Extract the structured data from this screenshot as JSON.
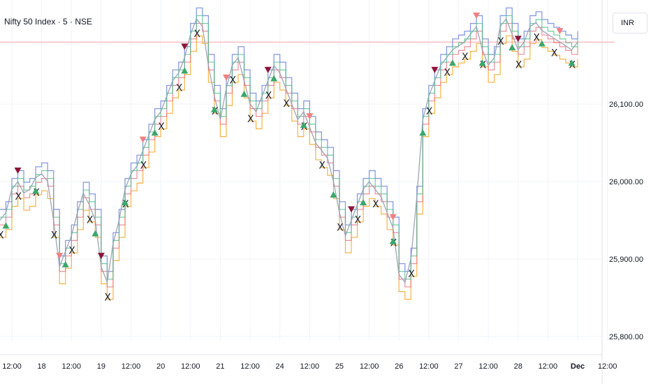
{
  "header": {
    "title": "Nifty 50 Index · 5 · NSE",
    "currency": "INR"
  },
  "colors": {
    "grid": "#f0f3fa",
    "price_line": "#f7a1a8",
    "bullish_marker": "#3aa86b",
    "bearish_marker": "#f08080",
    "dark_marker": "#8b1538",
    "x_marker": "#1e222d",
    "line_blue": "#7b8fe0",
    "line_orange": "#f5a623",
    "line_green": "#4cbf8b",
    "line_pink": "#e87080"
  },
  "chart_data": {
    "type": "line",
    "title": "Nifty 50 Index · 5 · NSE",
    "ylabel": "",
    "xlabel": "",
    "ylim": [
      25780,
      26220
    ],
    "yticks": [
      25800,
      25900,
      26000,
      26100
    ],
    "ytick_labels": [
      "25,800.00",
      "25,900.00",
      "26,000.00",
      "26,100.00"
    ],
    "x_ticks": [
      "12:00",
      "18",
      "12:00",
      "19",
      "12:00",
      "20",
      "12:00",
      "21",
      "12:00",
      "24",
      "12:00",
      "25",
      "12:00",
      "26",
      "12:00",
      "27",
      "12:00",
      "28",
      "12:00",
      "Dec",
      "12:00"
    ],
    "x_tick_bold": [
      false,
      false,
      false,
      false,
      false,
      false,
      false,
      false,
      false,
      false,
      false,
      false,
      false,
      false,
      false,
      false,
      false,
      false,
      false,
      true,
      false
    ],
    "x_tick_pos": [
      0.5,
      1,
      1.5,
      2,
      2.5,
      3,
      3.5,
      4,
      4.5,
      5,
      5.5,
      6,
      6.5,
      7,
      7.5,
      8,
      8.5,
      9,
      9.5,
      10,
      10.5
    ],
    "xlim": [
      0.3,
      10.8
    ],
    "grid": true,
    "price_line_value": 26180,
    "series": [
      {
        "x": [
          0.3,
          0.4,
          0.5,
          0.6,
          0.7,
          0.8,
          0.9,
          1.0,
          1.1,
          1.2,
          1.3,
          1.4,
          1.5,
          1.6,
          1.7,
          1.8,
          1.9,
          2.0,
          2.1,
          2.2,
          2.3,
          2.4,
          2.5,
          2.6,
          2.7,
          2.8,
          2.9,
          3.0,
          3.1,
          3.2,
          3.3,
          3.4,
          3.5,
          3.6,
          3.7,
          3.8,
          3.9,
          4.0,
          4.1,
          4.2,
          4.3,
          4.4,
          4.5,
          4.6,
          4.7,
          4.8,
          4.9,
          5.0,
          5.1,
          5.2,
          5.3,
          5.4,
          5.5,
          5.6,
          5.7,
          5.8,
          5.9,
          6.0,
          6.1,
          6.2,
          6.3,
          6.4,
          6.5,
          6.6,
          6.7,
          6.8,
          6.9,
          7.0,
          7.1,
          7.2,
          7.3,
          7.4,
          7.5,
          7.6,
          7.7,
          7.8,
          7.9,
          8.0,
          8.1,
          8.2,
          8.3,
          8.4,
          8.5,
          8.6,
          8.7,
          8.8,
          8.9,
          9.0,
          9.1,
          9.2,
          9.3,
          9.4,
          9.5,
          9.6,
          9.7,
          9.8,
          9.9,
          10.0
        ],
        "values": [
          25950,
          25960,
          25990,
          26000,
          25985,
          25990,
          26005,
          26010,
          26000,
          25950,
          25890,
          25910,
          25930,
          25960,
          25985,
          25970,
          25950,
          25890,
          25870,
          25920,
          25950,
          25990,
          26010,
          26020,
          26040,
          26060,
          26080,
          26090,
          26110,
          26130,
          26140,
          26160,
          26190,
          26210,
          26200,
          26150,
          26110,
          26080,
          26120,
          26150,
          26160,
          26130,
          26100,
          26090,
          26110,
          26130,
          26150,
          26140,
          26120,
          26100,
          26080,
          26090,
          26070,
          26050,
          26040,
          26030,
          26000,
          25960,
          25930,
          25950,
          25970,
          25990,
          26000,
          25990,
          25980,
          25960,
          25940,
          25880,
          25870,
          25900,
          25980,
          26080,
          26110,
          26130,
          26150,
          26160,
          26170,
          26175,
          26180,
          26190,
          26200,
          26170,
          26150,
          26160,
          26200,
          26210,
          26190,
          26170,
          26180,
          26200,
          26205,
          26195,
          26190,
          26185,
          26180,
          26175,
          26170,
          26180
        ]
      }
    ]
  }
}
